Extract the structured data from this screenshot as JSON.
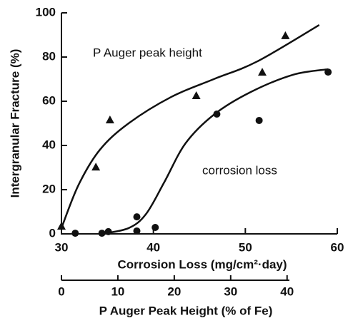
{
  "chart_data": {
    "type": "scatter",
    "xlabel": "Corrosion Loss (mg/cm²·day)",
    "x2label": "P Auger Peak Height (% of Fe)",
    "ylabel": "Intergranular Fracture (%)",
    "xlim": [
      30,
      60
    ],
    "xticks": [
      30,
      40,
      50,
      60
    ],
    "x2lim": [
      0,
      48.9
    ],
    "x2ticks": [
      0,
      10,
      20,
      30,
      40
    ],
    "ylim": [
      0,
      100
    ],
    "yticks": [
      0,
      20,
      40,
      60,
      80,
      100
    ],
    "annotations": [
      "P Auger peak height",
      "corrosion loss"
    ],
    "series": [
      {
        "marker": "triangle",
        "axis": "x2",
        "color": "#111",
        "x": [
          0,
          6.1,
          8.6,
          23.9,
          35.6,
          39.7
        ],
        "values": [
          3.5,
          30.3,
          51.6,
          62.6,
          73.2,
          89.7
        ],
        "curve_x": [
          0,
          3,
          6.8,
          11.9,
          19.5,
          27,
          34.7,
          45.7
        ],
        "curve_y": [
          2.6,
          22,
          38,
          50,
          62,
          70,
          78,
          94.5
        ]
      },
      {
        "marker": "circle",
        "axis": "x",
        "color": "#111",
        "x": [
          31.5,
          34.4,
          35.1,
          38.2,
          38.2,
          40.2,
          46.9,
          51.5,
          59
        ],
        "values": [
          0.3,
          0.3,
          1,
          7.7,
          1.3,
          2.9,
          54.2,
          51.3,
          73.2
        ],
        "curve_x": [
          34.4,
          37.3,
          39.2,
          41.2,
          43.5,
          46.6,
          50.5,
          55.2,
          59
        ],
        "curve_y": [
          0,
          2.6,
          9,
          23.5,
          41,
          54,
          64,
          72,
          74.5
        ]
      }
    ]
  }
}
